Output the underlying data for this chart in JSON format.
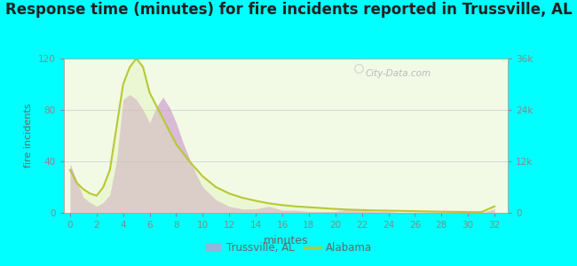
{
  "title": "Response time (minutes) for fire incidents reported in Trussville, AL",
  "xlabel": "minutes",
  "ylabel_left": "fire incidents",
  "background_color": "#00FFFF",
  "plot_bg_color": "#f2fae6",
  "title_fontsize": 12,
  "x_ticks": [
    0,
    2,
    4,
    6,
    8,
    10,
    12,
    14,
    16,
    18,
    20,
    22,
    24,
    26,
    28,
    30,
    32
  ],
  "ylim_left": [
    0,
    120
  ],
  "ylim_right": [
    0,
    36000
  ],
  "yticks_left": [
    0,
    40,
    80,
    120
  ],
  "yticks_right": [
    0,
    12000,
    24000,
    36000
  ],
  "ytick_labels_right": [
    "0",
    "12k",
    "24k",
    "36k"
  ],
  "trussville_x": [
    0,
    0.5,
    1,
    1.5,
    2,
    2.5,
    3,
    3.5,
    4,
    4.5,
    5,
    5.5,
    6,
    6.5,
    7,
    7.5,
    8,
    8.5,
    9,
    9.5,
    10,
    11,
    12,
    13,
    14,
    15,
    16,
    17,
    18,
    19,
    20,
    21,
    22,
    23,
    24,
    25,
    26,
    27,
    28,
    29,
    30,
    31,
    32
  ],
  "trussville_y": [
    38,
    25,
    12,
    8,
    5,
    8,
    14,
    40,
    88,
    92,
    88,
    80,
    70,
    82,
    90,
    82,
    70,
    55,
    42,
    30,
    20,
    10,
    5,
    3,
    3,
    5,
    2,
    2,
    1,
    1,
    1,
    3,
    2,
    1,
    1,
    0,
    0,
    0,
    0,
    0,
    0,
    0,
    3
  ],
  "alabama_x": [
    0,
    0.5,
    1,
    1.5,
    2,
    2.5,
    3,
    3.5,
    4,
    4.5,
    5,
    5.5,
    6,
    7,
    8,
    9,
    10,
    11,
    12,
    13,
    14,
    15,
    16,
    17,
    18,
    19,
    20,
    21,
    22,
    23,
    24,
    25,
    26,
    27,
    28,
    29,
    30,
    31,
    32
  ],
  "alabama_y": [
    10000,
    7000,
    5500,
    4500,
    4000,
    6000,
    10000,
    20000,
    30000,
    34000,
    36000,
    34000,
    28000,
    22000,
    16000,
    12000,
    8500,
    6000,
    4500,
    3500,
    2800,
    2200,
    1800,
    1500,
    1300,
    1100,
    900,
    750,
    650,
    550,
    500,
    450,
    380,
    320,
    270,
    230,
    180,
    150,
    1500
  ],
  "trussville_color": "#cc99cc",
  "trussville_fill": "#cc99cc",
  "alabama_color": "#b8c832",
  "alabama_fill": "#dff0b0",
  "watermark": "City-Data.com",
  "grid_color": "#cccccc",
  "axis_color": "#aaaaaa",
  "tick_color": "#888888",
  "label_color": "#666666"
}
